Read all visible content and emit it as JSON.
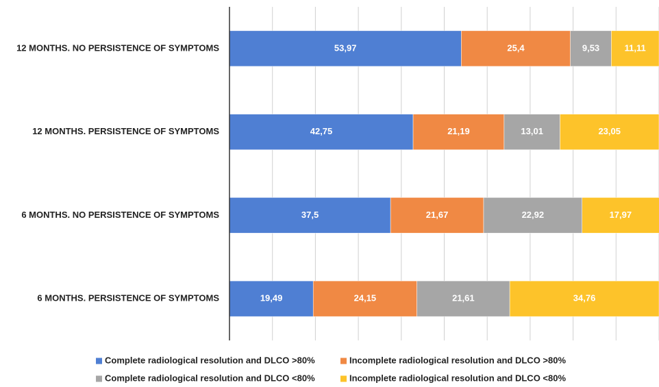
{
  "chart_data": {
    "type": "stacked-barh",
    "categories": [
      "12 MONTHS. NO PERSISTENCE OF SYMPTOMS",
      "12 MONTHS. PERSISTENCE OF SYMPTOMS",
      "6 MONTHS. NO PERSISTENCE OF SYMPTOMS",
      "6 MONTHS. PERSISTENCE OF SYMPTOMS"
    ],
    "series": [
      {
        "name": "Complete radiological resolution and DLCO >80%",
        "color": "#4f7fd3",
        "values": [
          53.97,
          42.75,
          37.5,
          19.49
        ],
        "value_labels": [
          "53,97",
          "42,75",
          "37,5",
          "19,49"
        ]
      },
      {
        "name": "Incomplete radiological resolution and DLCO >80%",
        "color": "#f08944",
        "values": [
          25.4,
          21.19,
          21.67,
          24.15
        ],
        "value_labels": [
          "25,4",
          "21,19",
          "21,67",
          "24,15"
        ]
      },
      {
        "name": "Complete radiological resolution and DLCO <80%",
        "color": "#a6a6a6",
        "values": [
          9.53,
          13.01,
          22.92,
          21.61
        ],
        "value_labels": [
          "9,53",
          "13,01",
          "22,92",
          "21,61"
        ]
      },
      {
        "name": "Incomplete radiological resolution and DLCO <80%",
        "color": "#fdc32a",
        "values": [
          11.11,
          23.05,
          17.97,
          34.76
        ],
        "value_labels": [
          "11,11",
          "23,05",
          "17,97",
          "34,76"
        ]
      }
    ],
    "xlim": [
      0,
      100
    ],
    "xticks": [
      0,
      10,
      20,
      30,
      40,
      50,
      60,
      70,
      80,
      90,
      100
    ],
    "grid": true
  }
}
